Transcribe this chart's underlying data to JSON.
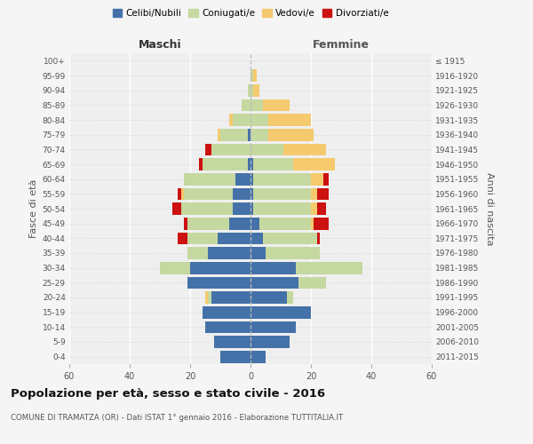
{
  "age_groups": [
    "0-4",
    "5-9",
    "10-14",
    "15-19",
    "20-24",
    "25-29",
    "30-34",
    "35-39",
    "40-44",
    "45-49",
    "50-54",
    "55-59",
    "60-64",
    "65-69",
    "70-74",
    "75-79",
    "80-84",
    "85-89",
    "90-94",
    "95-99",
    "100+"
  ],
  "birth_years": [
    "2011-2015",
    "2006-2010",
    "2001-2005",
    "1996-2000",
    "1991-1995",
    "1986-1990",
    "1981-1985",
    "1976-1980",
    "1971-1975",
    "1966-1970",
    "1961-1965",
    "1956-1960",
    "1951-1955",
    "1946-1950",
    "1941-1945",
    "1936-1940",
    "1931-1935",
    "1926-1930",
    "1921-1925",
    "1916-1920",
    "≤ 1915"
  ],
  "male": {
    "celibi": [
      10,
      12,
      15,
      16,
      13,
      21,
      20,
      14,
      11,
      7,
      6,
      6,
      5,
      1,
      0,
      1,
      0,
      0,
      0,
      0,
      0
    ],
    "coniugati": [
      0,
      0,
      0,
      0,
      1,
      0,
      10,
      7,
      10,
      14,
      17,
      16,
      17,
      15,
      13,
      9,
      6,
      3,
      1,
      0,
      0
    ],
    "vedovi": [
      0,
      0,
      0,
      0,
      1,
      0,
      0,
      0,
      0,
      0,
      0,
      1,
      0,
      0,
      0,
      1,
      1,
      0,
      0,
      0,
      0
    ],
    "divorziati": [
      0,
      0,
      0,
      0,
      0,
      0,
      0,
      0,
      3,
      1,
      3,
      1,
      0,
      1,
      2,
      0,
      0,
      0,
      0,
      0,
      0
    ]
  },
  "female": {
    "nubili": [
      5,
      13,
      15,
      20,
      12,
      16,
      15,
      5,
      4,
      3,
      1,
      1,
      1,
      1,
      0,
      0,
      0,
      0,
      0,
      0,
      0
    ],
    "coniugate": [
      0,
      0,
      0,
      0,
      2,
      9,
      22,
      18,
      18,
      17,
      19,
      19,
      19,
      13,
      11,
      6,
      6,
      4,
      1,
      1,
      0
    ],
    "vedove": [
      0,
      0,
      0,
      0,
      0,
      0,
      0,
      0,
      0,
      1,
      2,
      2,
      4,
      14,
      14,
      15,
      14,
      9,
      2,
      1,
      0
    ],
    "divorziate": [
      0,
      0,
      0,
      0,
      0,
      0,
      0,
      0,
      1,
      5,
      3,
      4,
      2,
      0,
      0,
      0,
      0,
      0,
      0,
      0,
      0
    ]
  },
  "colors": {
    "celibi": "#4472a8",
    "coniugati": "#c5d8a0",
    "vedovi": "#f5c96e",
    "divorziati": "#cc1111"
  },
  "xlim": 60,
  "title": "Popolazione per età, sesso e stato civile - 2016",
  "subtitle": "COMUNE DI TRAMATZA (OR) - Dati ISTAT 1° gennaio 2016 - Elaborazione TUTTITALIA.IT",
  "ylabel_left": "Fasce di età",
  "ylabel_right": "Anni di nascita",
  "xlabel_left": "Maschi",
  "xlabel_right": "Femmine",
  "legend_labels": [
    "Celibi/Nubili",
    "Coniugati/e",
    "Vedovi/e",
    "Divorziati/e"
  ],
  "bg_color": "#f5f5f5",
  "plot_bg": "#efefef"
}
